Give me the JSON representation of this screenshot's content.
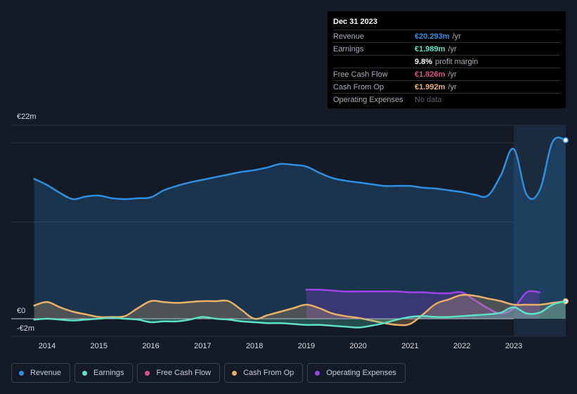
{
  "tooltip": {
    "title": "Dec 31 2023",
    "rows": [
      {
        "label": "Revenue",
        "value": "€20.293m",
        "unit": "/yr",
        "color": "#2e8fe0"
      },
      {
        "label": "Earnings",
        "value": "€1.989m",
        "unit": "/yr",
        "color": "#5de0c3"
      },
      {
        "label": "",
        "value": "9.8%",
        "unit": "profit margin",
        "color": "#ffffff"
      },
      {
        "label": "Free Cash Flow",
        "value": "€1.826m",
        "unit": "/yr",
        "color": "#d9538a"
      },
      {
        "label": "Cash From Op",
        "value": "€1.992m",
        "unit": "/yr",
        "color": "#e9b06a"
      },
      {
        "label": "Operating Expenses",
        "value": "No data",
        "unit": "",
        "color": "#5d636c"
      }
    ]
  },
  "legend": [
    {
      "label": "Revenue",
      "color": "#2e8fe0"
    },
    {
      "label": "Earnings",
      "color": "#5de0c3"
    },
    {
      "label": "Free Cash Flow",
      "color": "#d9538a"
    },
    {
      "label": "Cash From Op",
      "color": "#e9b06a"
    },
    {
      "label": "Operating Expenses",
      "color": "#9d44e8"
    }
  ],
  "chart_data": {
    "type": "line",
    "currency": "€",
    "ylim": [
      -2,
      22
    ],
    "xlim": [
      2013.75,
      2024.0
    ],
    "y_tick_labels": [
      {
        "value": 22,
        "label": "€22m"
      },
      {
        "value": 0,
        "label": "€0"
      },
      {
        "value": -2,
        "label": "-€2m"
      }
    ],
    "x_ticks": [
      2014,
      2015,
      2016,
      2017,
      2018,
      2019,
      2020,
      2021,
      2022,
      2023
    ],
    "x_tick_labels": [
      "2014",
      "2015",
      "2016",
      "2017",
      "2018",
      "2019",
      "2020",
      "2021",
      "2022",
      "2023"
    ],
    "highlight_from": 2023.0,
    "series": [
      {
        "name": "Revenue",
        "color": "#2e8fe0",
        "fill": true,
        "end_marker": true,
        "x": [
          2013.75,
          2014.0,
          2014.25,
          2014.5,
          2014.75,
          2015.0,
          2015.25,
          2015.5,
          2015.75,
          2016.0,
          2016.25,
          2016.5,
          2016.75,
          2017.0,
          2017.25,
          2017.5,
          2017.75,
          2018.0,
          2018.25,
          2018.5,
          2018.75,
          2019.0,
          2019.25,
          2019.5,
          2019.75,
          2020.0,
          2020.25,
          2020.5,
          2020.75,
          2021.0,
          2021.25,
          2021.5,
          2021.75,
          2022.0,
          2022.25,
          2022.5,
          2022.75,
          2023.0,
          2023.25,
          2023.5,
          2023.75,
          2024.0
        ],
        "values": [
          15.9,
          15.2,
          14.3,
          13.6,
          13.9,
          14.0,
          13.7,
          13.6,
          13.7,
          13.8,
          14.6,
          15.1,
          15.5,
          15.8,
          16.1,
          16.4,
          16.7,
          16.9,
          17.2,
          17.6,
          17.5,
          17.3,
          16.6,
          16.0,
          15.7,
          15.5,
          15.3,
          15.1,
          15.1,
          15.1,
          14.9,
          14.8,
          14.6,
          14.4,
          14.1,
          14.0,
          16.3,
          19.3,
          14.1,
          14.6,
          20.1,
          20.3
        ]
      },
      {
        "name": "Earnings",
        "color": "#5de0c3",
        "fill": true,
        "end_marker": false,
        "x": [
          2013.75,
          2014.0,
          2014.25,
          2014.5,
          2014.75,
          2015.0,
          2015.25,
          2015.5,
          2015.75,
          2016.0,
          2016.25,
          2016.5,
          2016.75,
          2017.0,
          2017.25,
          2017.5,
          2017.75,
          2018.0,
          2018.25,
          2018.5,
          2018.75,
          2019.0,
          2019.25,
          2019.5,
          2019.75,
          2020.0,
          2020.25,
          2020.5,
          2020.75,
          2021.0,
          2021.25,
          2021.5,
          2021.75,
          2022.0,
          2022.25,
          2022.5,
          2022.75,
          2023.0,
          2023.25,
          2023.5,
          2023.75,
          2024.0
        ],
        "values": [
          -0.1,
          0.0,
          -0.1,
          -0.2,
          -0.1,
          0.0,
          0.1,
          0.0,
          -0.1,
          -0.4,
          -0.3,
          -0.3,
          -0.1,
          0.2,
          0.0,
          -0.1,
          -0.3,
          -0.4,
          -0.5,
          -0.5,
          -0.6,
          -0.7,
          -0.7,
          -0.8,
          -0.9,
          -1.0,
          -0.8,
          -0.5,
          -0.1,
          0.2,
          0.3,
          0.2,
          0.2,
          0.3,
          0.4,
          0.5,
          0.7,
          1.3,
          0.6,
          0.7,
          1.6,
          1.99
        ]
      },
      {
        "name": "Cash From Op",
        "color": "#e9b06a",
        "fill": true,
        "end_marker": true,
        "x": [
          2013.75,
          2014.0,
          2014.25,
          2014.5,
          2014.75,
          2015.0,
          2015.25,
          2015.5,
          2015.75,
          2016.0,
          2016.25,
          2016.5,
          2016.75,
          2017.0,
          2017.25,
          2017.5,
          2017.75,
          2018.0,
          2018.25,
          2018.5,
          2018.75,
          2019.0,
          2019.25,
          2019.5,
          2019.75,
          2020.0,
          2020.25,
          2020.5,
          2020.75,
          2021.0,
          2021.25,
          2021.5,
          2021.75,
          2022.0,
          2022.25,
          2022.5,
          2022.75,
          2023.0,
          2023.25,
          2023.5,
          2023.75,
          2024.0
        ],
        "values": [
          1.5,
          1.9,
          1.3,
          0.8,
          0.5,
          0.2,
          0.2,
          0.3,
          1.2,
          2.0,
          1.9,
          1.8,
          1.9,
          2.0,
          2.0,
          2.0,
          1.0,
          0.0,
          0.4,
          0.8,
          1.2,
          1.6,
          1.2,
          0.6,
          0.3,
          0.1,
          -0.2,
          -0.5,
          -0.7,
          -0.6,
          0.5,
          1.7,
          2.2,
          2.7,
          2.6,
          2.3,
          2.0,
          1.6,
          1.6,
          1.6,
          1.8,
          1.99
        ]
      },
      {
        "name": "Operating Expenses",
        "color": "#9d44e8",
        "fill": true,
        "end_marker": false,
        "x": [
          2019.0,
          2019.25,
          2019.5,
          2019.75,
          2020.0,
          2020.25,
          2020.5,
          2020.75,
          2021.0,
          2021.25,
          2021.5,
          2021.75,
          2022.0,
          2022.25,
          2022.5,
          2022.75,
          2023.0,
          2023.25,
          2023.5
        ],
        "values": [
          3.3,
          3.3,
          3.2,
          3.1,
          3.1,
          3.1,
          3.1,
          3.1,
          3.0,
          3.0,
          2.9,
          2.9,
          3.0,
          2.1,
          1.2,
          0.6,
          1.2,
          3.0,
          3.0
        ]
      }
    ]
  }
}
